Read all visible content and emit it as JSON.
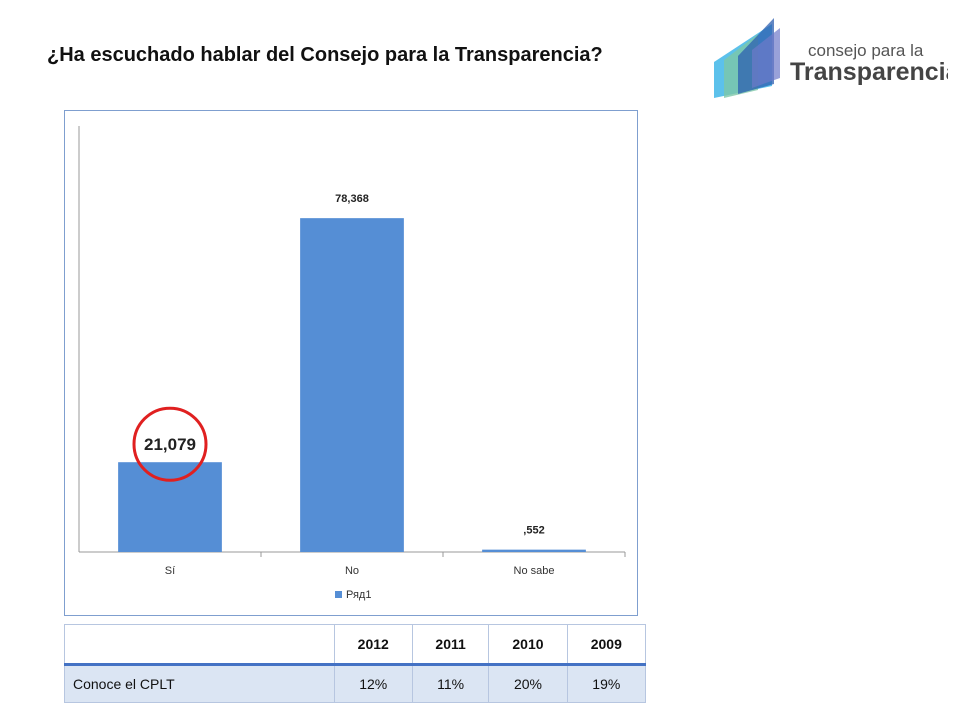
{
  "title": "¿Ha escuchado hablar del Consejo para la Transparencia?",
  "logo": {
    "line1": "consejo para la",
    "line2": "Transparencia",
    "colors": [
      "#2e5fb0",
      "#3fb6e8",
      "#7dc7a8",
      "#6d79c9"
    ]
  },
  "chart_data": {
    "type": "bar",
    "categories": [
      "Sí",
      "No",
      "No sabe"
    ],
    "series": [
      {
        "name": "Ряд1",
        "values": [
          21.079,
          78.368,
          0.552
        ],
        "labels": [
          "21,079",
          "78,368",
          ",552"
        ]
      }
    ],
    "ylim": [
      0,
      100
    ],
    "grid": false,
    "legend": "bottom",
    "bar_color": "#558ed5",
    "highlight": {
      "category": "Sí",
      "color": "#e02020"
    }
  },
  "table": {
    "headers": [
      "",
      "2012",
      "2011",
      "2010",
      "2009"
    ],
    "rows": [
      [
        "Conoce el CPLT",
        "12%",
        "11%",
        "20%",
        "19%"
      ]
    ]
  }
}
